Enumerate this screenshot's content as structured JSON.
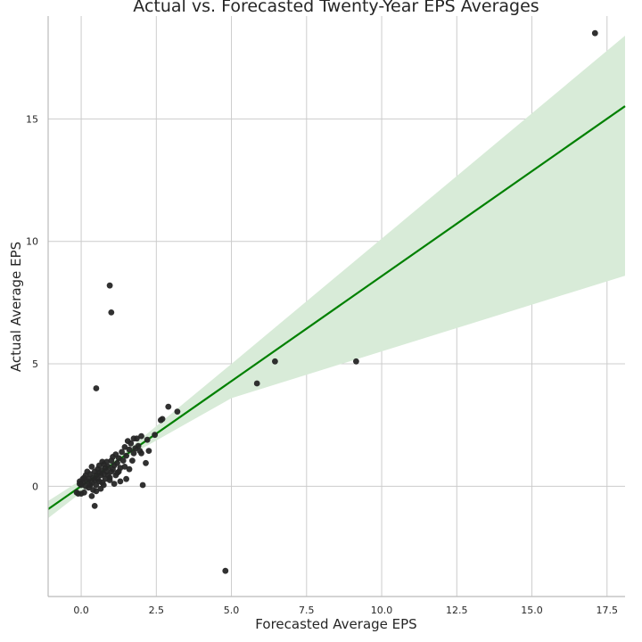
{
  "chart_data": {
    "type": "scatter",
    "title": "Actual vs. Forecasted Twenty-Year EPS Averages",
    "xlabel": "Forecasted Average EPS",
    "ylabel": "Actual Average EPS",
    "xlim": [
      -1.1,
      18.1
    ],
    "ylim": [
      -4.5,
      19.2
    ],
    "xticks": [
      0.0,
      2.5,
      5.0,
      7.5,
      10.0,
      12.5,
      15.0,
      17.5
    ],
    "xtick_labels": [
      "0.0",
      "2.5",
      "5.0",
      "7.5",
      "10.0",
      "12.5",
      "15.0",
      "17.5"
    ],
    "yticks": [
      0,
      5,
      10,
      15
    ],
    "ytick_labels": [
      "0",
      "5",
      "10",
      "15"
    ],
    "grid": true,
    "colors": {
      "points": "#262626",
      "fit_line": "#008000",
      "confidence_band": "#d8ebd8"
    },
    "points": [
      [
        17.1,
        18.5
      ],
      [
        9.15,
        5.1
      ],
      [
        6.45,
        5.1
      ],
      [
        5.85,
        4.2
      ],
      [
        4.8,
        -3.45
      ],
      [
        0.95,
        8.2
      ],
      [
        1.0,
        7.1
      ],
      [
        0.5,
        4.0
      ],
      [
        3.2,
        3.05
      ],
      [
        2.9,
        3.25
      ],
      [
        2.7,
        2.75
      ],
      [
        2.65,
        2.7
      ],
      [
        2.45,
        2.1
      ],
      [
        2.25,
        1.45
      ],
      [
        2.2,
        1.9
      ],
      [
        2.15,
        0.95
      ],
      [
        2.05,
        0.05
      ],
      [
        2.0,
        2.05
      ],
      [
        2.0,
        1.35
      ],
      [
        1.95,
        1.45
      ],
      [
        1.9,
        1.65
      ],
      [
        1.85,
        1.95
      ],
      [
        1.8,
        1.55
      ],
      [
        1.75,
        1.95
      ],
      [
        1.75,
        1.35
      ],
      [
        1.7,
        1.05
      ],
      [
        1.65,
        1.75
      ],
      [
        1.6,
        1.5
      ],
      [
        1.6,
        0.7
      ],
      [
        1.55,
        1.85
      ],
      [
        1.5,
        1.25
      ],
      [
        1.5,
        0.3
      ],
      [
        1.45,
        0.8
      ],
      [
        1.45,
        1.6
      ],
      [
        1.4,
        1.05
      ],
      [
        1.35,
        1.4
      ],
      [
        1.3,
        0.75
      ],
      [
        1.25,
        1.15
      ],
      [
        1.2,
        0.95
      ],
      [
        1.2,
        0.55
      ],
      [
        1.15,
        1.3
      ],
      [
        1.1,
        0.85
      ],
      [
        1.1,
        0.1
      ],
      [
        1.05,
        1.2
      ],
      [
        1.0,
        0.6
      ],
      [
        1.0,
        1.05
      ],
      [
        0.95,
        0.25
      ],
      [
        0.9,
        0.8
      ],
      [
        0.9,
        0.45
      ],
      [
        0.85,
        1.0
      ],
      [
        0.85,
        0.6
      ],
      [
        0.8,
        0.3
      ],
      [
        0.8,
        0.75
      ],
      [
        0.75,
        0.9
      ],
      [
        0.75,
        0.5
      ],
      [
        0.7,
        0.65
      ],
      [
        0.7,
        0.15
      ],
      [
        0.65,
        -0.1
      ],
      [
        0.65,
        0.45
      ],
      [
        0.6,
        0.85
      ],
      [
        0.6,
        0.55
      ],
      [
        0.55,
        0.3
      ],
      [
        0.55,
        0.7
      ],
      [
        0.5,
        0.05
      ],
      [
        0.5,
        0.45
      ],
      [
        0.5,
        -0.2
      ],
      [
        0.45,
        0.6
      ],
      [
        0.45,
        0.25
      ],
      [
        0.4,
        0.35
      ],
      [
        0.4,
        -0.15
      ],
      [
        0.45,
        -0.8
      ],
      [
        0.35,
        -0.4
      ],
      [
        0.35,
        0.15
      ],
      [
        0.3,
        0.05
      ],
      [
        0.3,
        0.5
      ],
      [
        0.25,
        0.3
      ],
      [
        0.25,
        -0.05
      ],
      [
        0.2,
        0.2
      ],
      [
        0.2,
        0.6
      ],
      [
        0.15,
        0.0
      ],
      [
        0.1,
        0.35
      ],
      [
        0.1,
        -0.25
      ],
      [
        0.05,
        0.15
      ],
      [
        0.0,
        0.05
      ],
      [
        0.0,
        -0.3
      ],
      [
        -0.05,
        0.2
      ],
      [
        -0.1,
        -0.3
      ],
      [
        -0.15,
        -0.25
      ],
      [
        -0.05,
        0.1
      ],
      [
        0.05,
        0.3
      ],
      [
        0.15,
        0.45
      ],
      [
        0.35,
        0.8
      ],
      [
        0.6,
        0.2
      ],
      [
        0.75,
        0.05
      ],
      [
        0.95,
        0.35
      ],
      [
        1.15,
        0.45
      ],
      [
        1.3,
        0.2
      ],
      [
        1.05,
        0.7
      ],
      [
        1.25,
        0.6
      ],
      [
        0.7,
        1.0
      ]
    ],
    "regression": {
      "slope": 0.857,
      "intercept": 0.01,
      "x_range": [
        -1.1,
        18.1
      ]
    },
    "confidence_band": [
      [
        -1.1,
        -1.3,
        -0.6
      ],
      [
        1.5,
        1.18,
        1.44
      ],
      [
        5.0,
        3.6,
        5.0
      ],
      [
        18.1,
        8.6,
        18.4
      ]
    ]
  }
}
